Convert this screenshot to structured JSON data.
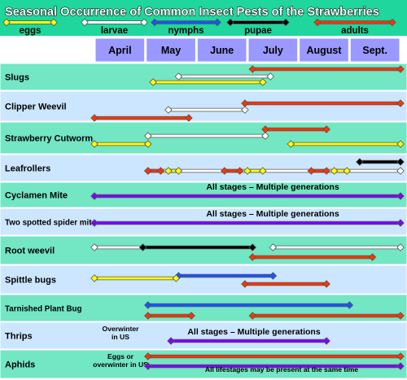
{
  "chart_data": {
    "type": "timeline",
    "title": "Seasonal Occurrence of Common Insect Pests of the Strawberries",
    "months": [
      "April",
      "May",
      "June",
      "July",
      "August",
      "Sept."
    ],
    "legend": [
      {
        "key": "eggs",
        "label": "eggs",
        "color": "#ffff00"
      },
      {
        "key": "larvae",
        "label": "larvae",
        "color": "#ffffff"
      },
      {
        "key": "nymphs",
        "label": "nymphs",
        "color": "#1a53ff"
      },
      {
        "key": "pupae",
        "label": "pupae",
        "color": "#000000"
      },
      {
        "key": "adults",
        "label": "adults",
        "color": "#ff3300"
      }
    ],
    "colors": {
      "header_bg": "#1fd69c",
      "month_bg": "#9999ff",
      "row_dark": "#73e6c4",
      "row_light": "#cce6ff",
      "all_stages": "#8000ff"
    },
    "rows": [
      {
        "name": "Slugs",
        "segments": [
          {
            "stage": "adults",
            "start": 3.1,
            "end": 6.0
          },
          {
            "stage": "larvae",
            "start": 1.65,
            "end": 3.45
          },
          {
            "stage": "eggs",
            "start": 1.15,
            "end": 3.3
          }
        ]
      },
      {
        "name": "Clipper Weevil",
        "segments": [
          {
            "stage": "adults",
            "start": 2.95,
            "end": 6.0
          },
          {
            "stage": "larvae",
            "start": 1.45,
            "end": 2.95
          },
          {
            "stage": "adults",
            "start": 0.0,
            "end": 1.85
          }
        ]
      },
      {
        "name": "Strawberry Cutworm",
        "segments": [
          {
            "stage": "adults",
            "start": 3.35,
            "end": 4.55
          },
          {
            "stage": "larvae",
            "start": 1.05,
            "end": 3.35
          },
          {
            "stage": "eggs",
            "start": 0.0,
            "end": 1.05
          },
          {
            "stage": "eggs",
            "start": 3.85,
            "end": 6.0
          }
        ]
      },
      {
        "name": "Leafrollers",
        "segments": [
          {
            "stage": "pupae",
            "start": 5.2,
            "end": 6.0
          },
          {
            "stage": "larvae",
            "start": 1.05,
            "end": 6.0
          },
          {
            "stage": "adults",
            "start": 1.05,
            "end": 1.3
          },
          {
            "stage": "eggs",
            "start": 1.45,
            "end": 1.65
          },
          {
            "stage": "adults",
            "start": 2.55,
            "end": 2.85
          },
          {
            "stage": "eggs",
            "start": 3.0,
            "end": 3.3
          },
          {
            "stage": "adults",
            "start": 4.25,
            "end": 4.55
          },
          {
            "stage": "eggs",
            "start": 4.7,
            "end": 4.95
          }
        ]
      },
      {
        "name": "Cyclamen Mite",
        "note": "All stages – Multiple generations",
        "segments": [
          {
            "stage": "all",
            "start": 0.0,
            "end": 6.0
          }
        ]
      },
      {
        "name": "Two spotted spider mite",
        "note": "All stages – Multiple generations",
        "segments": [
          {
            "stage": "all",
            "start": 0.0,
            "end": 6.0
          }
        ]
      },
      {
        "name": "Root weevil",
        "segments": [
          {
            "stage": "larvae",
            "start": 0.0,
            "end": 0.95
          },
          {
            "stage": "pupae",
            "start": 0.95,
            "end": 3.1
          },
          {
            "stage": "larvae",
            "start": 3.5,
            "end": 6.0
          },
          {
            "stage": "adults",
            "start": 3.1,
            "end": 5.45
          }
        ]
      },
      {
        "name": "Spittle bugs",
        "segments": [
          {
            "stage": "nymphs",
            "start": 1.65,
            "end": 3.5
          },
          {
            "stage": "eggs",
            "start": 0.0,
            "end": 1.6
          },
          {
            "stage": "adults",
            "start": 2.95,
            "end": 4.55
          }
        ]
      },
      {
        "name": "Tarnished Plant Bug",
        "segments": [
          {
            "stage": "nymphs",
            "start": 1.05,
            "end": 5.0
          },
          {
            "stage": "adults",
            "start": 1.05,
            "end": 1.9
          },
          {
            "stage": "adults",
            "start": 3.1,
            "end": 6.0
          }
        ]
      },
      {
        "name": "Thrips",
        "note": "All stages – Multiple generations",
        "left_note": [
          "Overwinter",
          "in US"
        ],
        "segments": [
          {
            "stage": "all",
            "start": 1.5,
            "end": 4.55
          }
        ]
      },
      {
        "name": "Aphids",
        "note": "All lifestages may be present at the same time",
        "left_note": [
          "Eggs or",
          "overwinter in US"
        ],
        "segments": [
          {
            "stage": "adults",
            "start": 1.05,
            "end": 6.0
          },
          {
            "stage": "all",
            "start": 1.05,
            "end": 6.0
          }
        ]
      }
    ]
  }
}
